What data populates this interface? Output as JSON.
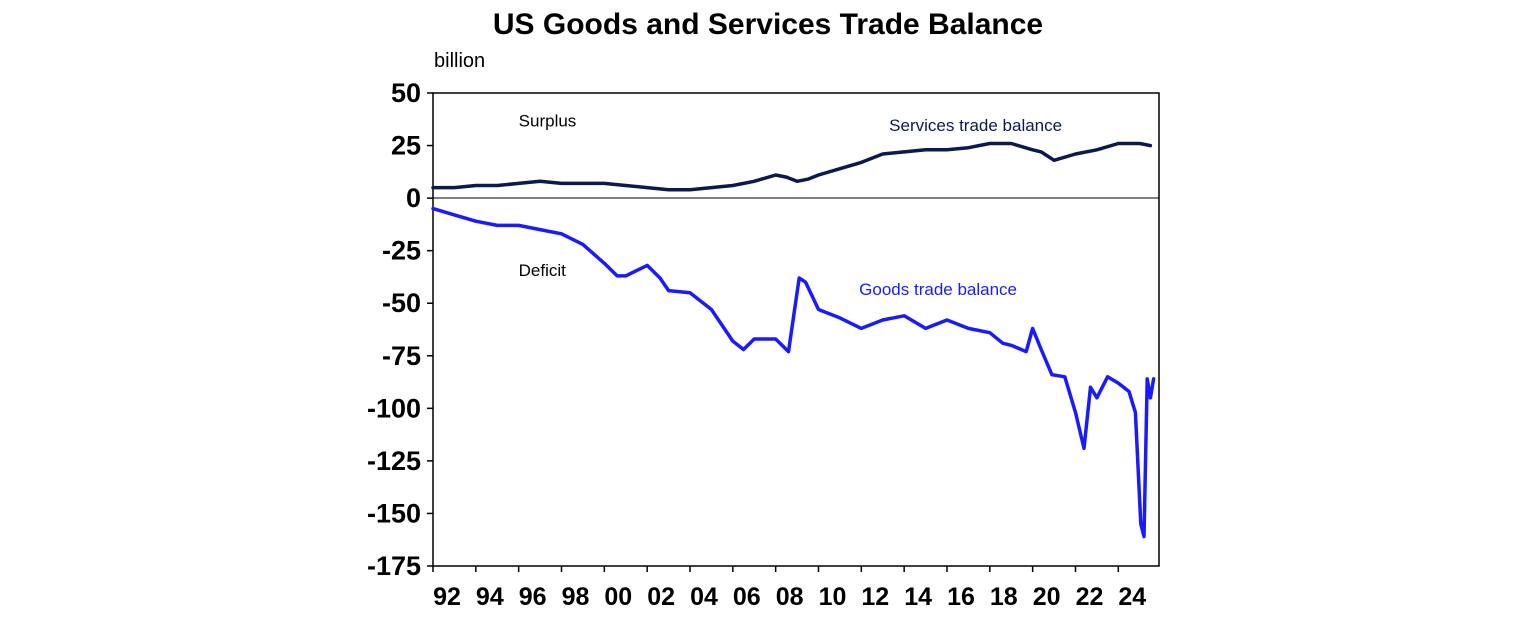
{
  "chart_data": {
    "type": "line",
    "title": "US Goods and Services Trade Balance",
    "ylabel": "billion",
    "xlabel": "",
    "xlim": [
      1992,
      2025.9
    ],
    "ylim": [
      -175,
      50
    ],
    "yticks": [
      50,
      25,
      0,
      -25,
      -50,
      -75,
      -100,
      -125,
      -150,
      -175
    ],
    "xticks": [
      {
        "value": 1992,
        "label": "92"
      },
      {
        "value": 1994,
        "label": "94"
      },
      {
        "value": 1996,
        "label": "96"
      },
      {
        "value": 1998,
        "label": "98"
      },
      {
        "value": 2000,
        "label": "00"
      },
      {
        "value": 2002,
        "label": "02"
      },
      {
        "value": 2004,
        "label": "04"
      },
      {
        "value": 2006,
        "label": "06"
      },
      {
        "value": 2008,
        "label": "08"
      },
      {
        "value": 2010,
        "label": "10"
      },
      {
        "value": 2012,
        "label": "12"
      },
      {
        "value": 2014,
        "label": "14"
      },
      {
        "value": 2016,
        "label": "16"
      },
      {
        "value": 2018,
        "label": "18"
      },
      {
        "value": 2020,
        "label": "20"
      },
      {
        "value": 2022,
        "label": "22"
      },
      {
        "value": 2024,
        "label": "24"
      }
    ],
    "grid": false,
    "legend": "none",
    "annotations": [
      {
        "text": "Surplus",
        "x": 1996,
        "y": 34,
        "color": "#000000"
      },
      {
        "text": "Deficit",
        "x": 1996,
        "y": -37,
        "color": "#000000"
      },
      {
        "text": "Services trade balance",
        "x": 2013.3,
        "y": 32,
        "color": "#0b1a4e"
      },
      {
        "text": "Goods trade balance",
        "x": 2011.9,
        "y": -46,
        "color": "#1a1aff"
      }
    ],
    "series": [
      {
        "name": "Services trade balance",
        "color": "#0b1a4e",
        "x": [
          1992,
          1993,
          1994,
          1995,
          1996,
          1997,
          1998,
          1999,
          2000,
          2001,
          2002,
          2003,
          2004,
          2005,
          2006,
          2007,
          2008,
          2008.5,
          2009,
          2009.5,
          2010,
          2011,
          2012,
          2013,
          2014,
          2015,
          2016,
          2017,
          2018,
          2019,
          2020,
          2020.4,
          2021,
          2022,
          2023,
          2024,
          2025,
          2025.5
        ],
        "values": [
          5,
          5,
          6,
          6,
          7,
          8,
          7,
          7,
          7,
          6,
          5,
          4,
          4,
          5,
          6,
          8,
          11,
          10,
          8,
          9,
          11,
          14,
          17,
          21,
          22,
          23,
          23,
          24,
          26,
          26,
          23,
          22,
          18,
          21,
          23,
          26,
          26,
          25
        ]
      },
      {
        "name": "Goods trade balance",
        "color": "#1a1aff",
        "x": [
          1992,
          1993,
          1994,
          1995,
          1996,
          1997,
          1998,
          1999,
          2000,
          2000.6,
          2001,
          2002,
          2002.6,
          2003,
          2004,
          2005,
          2006,
          2006.5,
          2007,
          2008,
          2008.6,
          2008.9,
          2009.1,
          2009.4,
          2010,
          2011,
          2012,
          2013,
          2014,
          2015,
          2016,
          2017,
          2018,
          2018.6,
          2019,
          2019.7,
          2020,
          2020.4,
          2020.9,
          2021.5,
          2022,
          2022.4,
          2022.7,
          2023,
          2023.5,
          2024,
          2024.5,
          2024.8,
          2025.05,
          2025.2,
          2025.35,
          2025.5,
          2025.65
        ],
        "values": [
          -5,
          -8,
          -11,
          -13,
          -13,
          -15,
          -17,
          -22,
          -31,
          -37,
          -37,
          -32,
          -38,
          -44,
          -45,
          -53,
          -68,
          -72,
          -67,
          -67,
          -73,
          -52,
          -38,
          -40,
          -53,
          -57,
          -62,
          -58,
          -56,
          -62,
          -58,
          -62,
          -64,
          -69,
          -70,
          -73,
          -62,
          -72,
          -84,
          -85,
          -102,
          -119,
          -90,
          -95,
          -85,
          -88,
          -92,
          -102,
          -155,
          -161,
          -86,
          -95,
          -86
        ]
      }
    ]
  }
}
